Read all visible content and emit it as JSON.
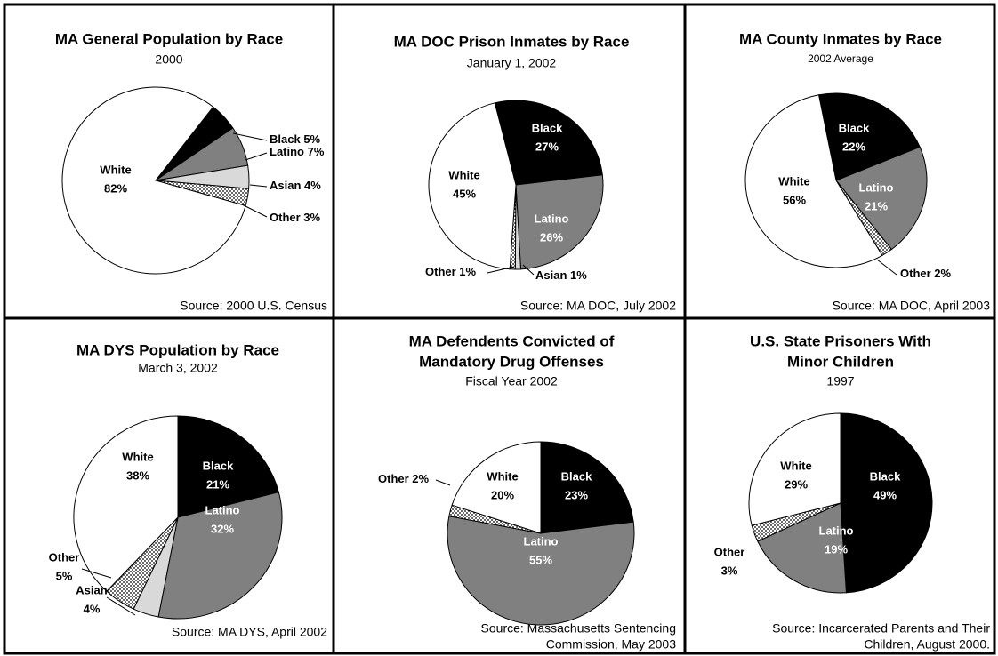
{
  "chart_data": [
    {
      "type": "pie",
      "title": [
        "MA General Population by Race"
      ],
      "subtitle": "2000",
      "categories": [
        "Black",
        "Latino",
        "Asian",
        "Other",
        "White"
      ],
      "values": [
        5,
        7,
        4,
        3,
        82
      ],
      "value_labels": [
        "5%",
        "7%",
        "4%",
        "3%",
        "82%"
      ],
      "colors": [
        "#000000",
        "#808080",
        "#d9d9d9",
        "dots",
        "#ffffff"
      ],
      "source": [
        "Source:  2000 U.S. Census"
      ]
    },
    {
      "type": "pie",
      "title": [
        "MA DOC Prison Inmates by Race"
      ],
      "subtitle": "January 1, 2002",
      "categories": [
        "Black",
        "Latino",
        "Asian",
        "Other",
        "White"
      ],
      "values": [
        27,
        26,
        1,
        1,
        45
      ],
      "value_labels": [
        "27%",
        "26%",
        "1%",
        "1%",
        "45%"
      ],
      "colors": [
        "#000000",
        "#808080",
        "#d9d9d9",
        "dots",
        "#ffffff"
      ],
      "source": [
        "Source:  MA DOC, July 2002"
      ]
    },
    {
      "type": "pie",
      "title": [
        "MA County Inmates by Race"
      ],
      "subtitle": "2002 Average",
      "categories": [
        "Black",
        "Latino",
        "Other",
        "White"
      ],
      "values": [
        22,
        21,
        2,
        56
      ],
      "value_labels": [
        "22%",
        "21%",
        "2%",
        "56%"
      ],
      "colors": [
        "#000000",
        "#808080",
        "dots",
        "#ffffff"
      ],
      "source": [
        "Source: MA DOC, April 2003"
      ]
    },
    {
      "type": "pie",
      "title": [
        "MA DYS Population by Race"
      ],
      "subtitle": "March 3, 2002",
      "categories": [
        "Black",
        "Latino",
        "Asian",
        "Other",
        "White"
      ],
      "values": [
        21,
        32,
        4,
        5,
        38
      ],
      "value_labels": [
        "21%",
        "32%",
        "4%",
        "5%",
        "38%"
      ],
      "colors": [
        "#000000",
        "#808080",
        "#d9d9d9",
        "dots",
        "#ffffff"
      ],
      "source": [
        "Source:  MA DYS, April 2002"
      ]
    },
    {
      "type": "pie",
      "title": [
        "MA Defendents  Convicted of",
        "Mandatory Drug Offenses"
      ],
      "subtitle": "Fiscal Year 2002",
      "categories": [
        "Black",
        "Latino",
        "Other",
        "White"
      ],
      "values": [
        23,
        55,
        2,
        20
      ],
      "value_labels": [
        "23%",
        "55%",
        "2%",
        "20%"
      ],
      "colors": [
        "#000000",
        "#808080",
        "dots",
        "#ffffff"
      ],
      "source": [
        "Source: Massachusetts Sentencing",
        "Commission, May 2003"
      ]
    },
    {
      "type": "pie",
      "title": [
        "U.S. State Prisoners With",
        "Minor Children"
      ],
      "subtitle": "1997",
      "categories": [
        "Black",
        "Latino",
        "Other",
        "White"
      ],
      "values": [
        49,
        19,
        3,
        29
      ],
      "value_labels": [
        "49%",
        "19%",
        "3%",
        "29%"
      ],
      "colors": [
        "#000000",
        "#808080",
        "dots",
        "#ffffff"
      ],
      "source": [
        "Source: Incarcerated Parents and Their",
        "Children, August 2000."
      ]
    }
  ]
}
